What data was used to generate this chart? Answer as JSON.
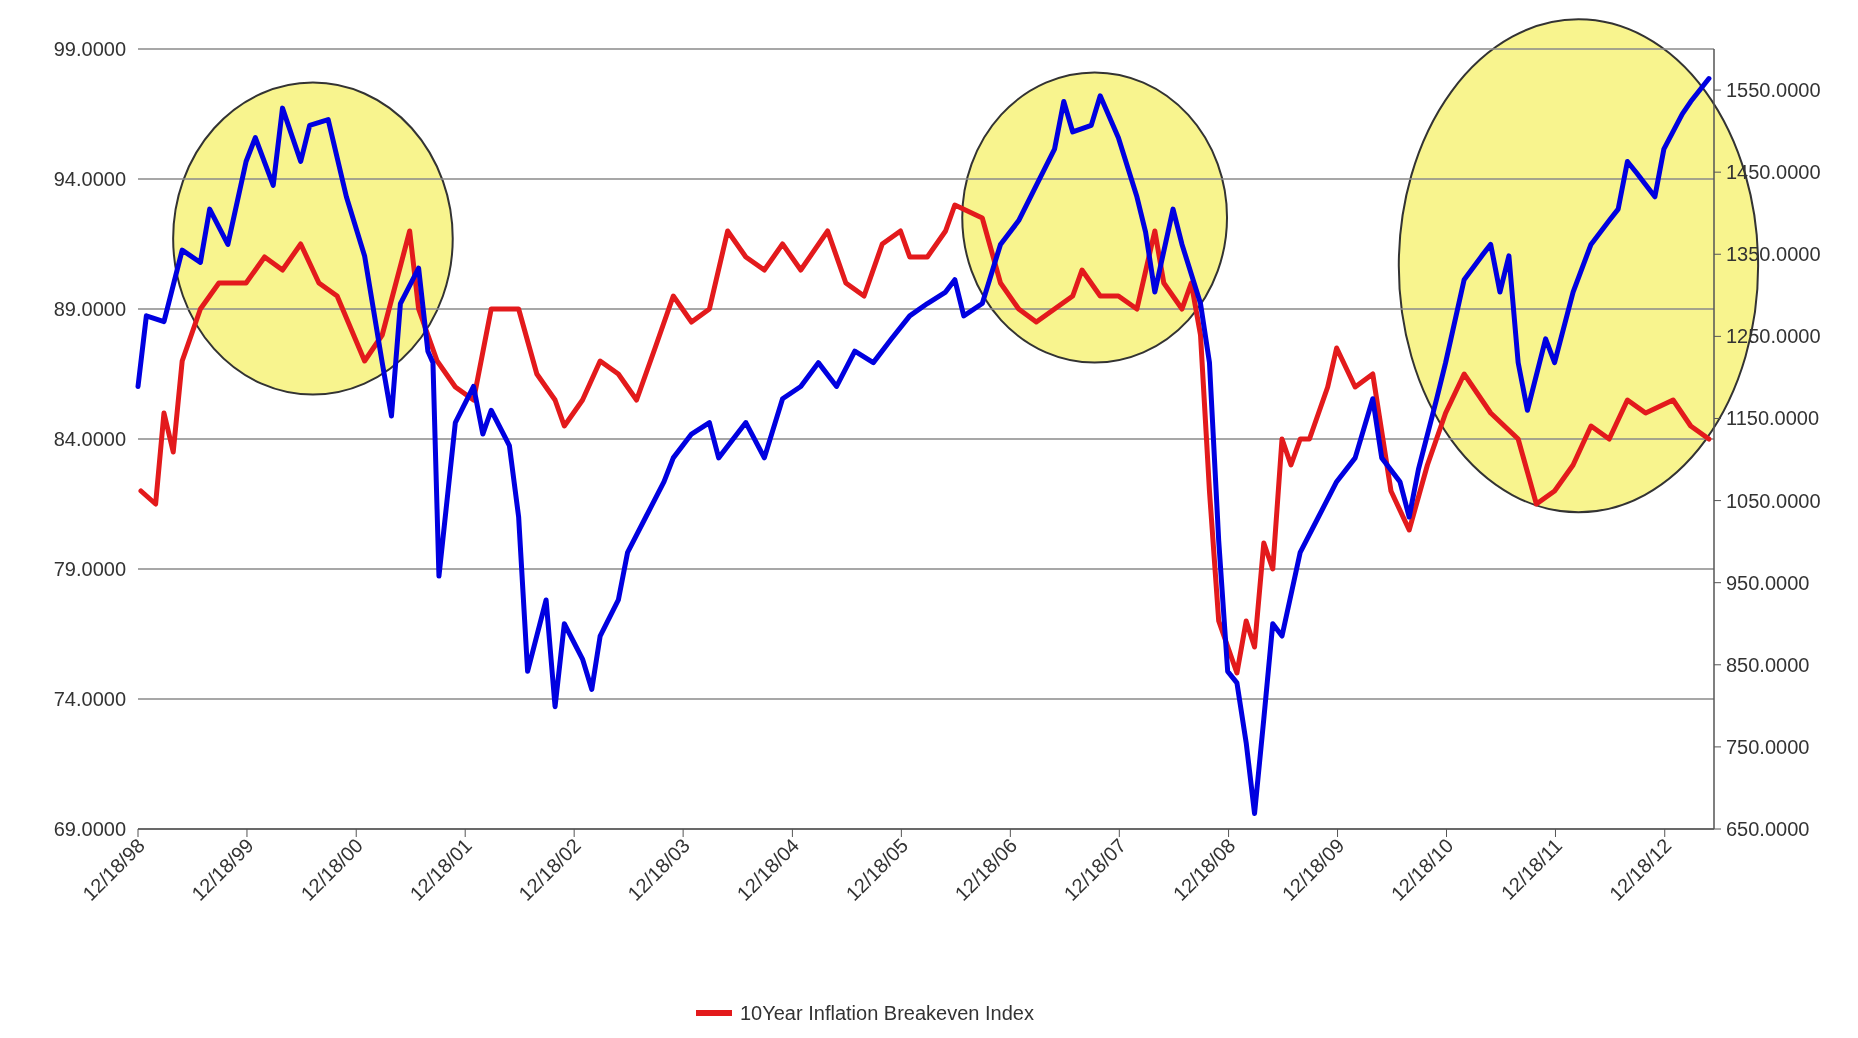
{
  "chart_data": {
    "type": "line",
    "xlim": [
      "1998-12-18",
      "2013-06-01"
    ],
    "xticks": [
      {
        "value": "1998-12-18",
        "label": "12/18/98"
      },
      {
        "value": "1999-12-18",
        "label": "12/18/99"
      },
      {
        "value": "2000-12-18",
        "label": "12/18/00"
      },
      {
        "value": "2001-12-18",
        "label": "12/18/01"
      },
      {
        "value": "2002-12-18",
        "label": "12/18/02"
      },
      {
        "value": "2003-12-18",
        "label": "12/18/03"
      },
      {
        "value": "2004-12-18",
        "label": "12/18/04"
      },
      {
        "value": "2005-12-18",
        "label": "12/18/05"
      },
      {
        "value": "2006-12-18",
        "label": "12/18/06"
      },
      {
        "value": "2007-12-18",
        "label": "12/18/07"
      },
      {
        "value": "2008-12-18",
        "label": "12/18/08"
      },
      {
        "value": "2009-12-18",
        "label": "12/18/09"
      },
      {
        "value": "2010-12-18",
        "label": "12/18/10"
      },
      {
        "value": "2011-12-18",
        "label": "12/18/11"
      },
      {
        "value": "2012-12-18",
        "label": "12/18/12"
      }
    ],
    "ylim": [
      69,
      99
    ],
    "yticks": [
      {
        "value": 69,
        "label": "69.0000"
      },
      {
        "value": 74,
        "label": "74.0000"
      },
      {
        "value": 79,
        "label": "79.0000"
      },
      {
        "value": 84,
        "label": "84.0000"
      },
      {
        "value": 89,
        "label": "89.0000"
      },
      {
        "value": 94,
        "label": "94.0000"
      },
      {
        "value": 99,
        "label": "99.0000"
      }
    ],
    "y2lim": [
      650,
      1600
    ],
    "y2ticks": [
      {
        "value": 650,
        "label": "650.0000"
      },
      {
        "value": 750,
        "label": "750.0000"
      },
      {
        "value": 850,
        "label": "850.0000"
      },
      {
        "value": 950,
        "label": "950.0000"
      },
      {
        "value": 1050,
        "label": "1050.0000"
      },
      {
        "value": 1150,
        "label": "1150.0000"
      },
      {
        "value": 1250,
        "label": "1250.0000"
      },
      {
        "value": 1350,
        "label": "1350.0000"
      },
      {
        "value": 1450,
        "label": "1450.0000"
      },
      {
        "value": 1550,
        "label": "1550.0000"
      }
    ],
    "grid": "y",
    "legend": "bottom",
    "series": [
      {
        "name": "10Year Inflation Breakeven Index",
        "color": "#e31a1c",
        "x": [
          "1998-12-28",
          "1999-02",
          "1999-03",
          "1999-04",
          "1999-05",
          "1999-07",
          "1999-09",
          "1999-12",
          "2000-02",
          "2000-04",
          "2000-06",
          "2000-08",
          "2000-10",
          "2001-01",
          "2001-03",
          "2001-06",
          "2001-07",
          "2001-09",
          "2001-11",
          "2002-01",
          "2002-03",
          "2002-06",
          "2002-08",
          "2002-10",
          "2002-11",
          "2003-01",
          "2003-03",
          "2003-05",
          "2003-07",
          "2003-09",
          "2003-11",
          "2004-01",
          "2004-03",
          "2004-05",
          "2004-07",
          "2004-09",
          "2004-11",
          "2005-01",
          "2005-04",
          "2005-06",
          "2005-08",
          "2005-10",
          "2005-12",
          "2006-01",
          "2006-03",
          "2006-05",
          "2006-06",
          "2006-09",
          "2006-11",
          "2007-01",
          "2007-03",
          "2007-05",
          "2007-07",
          "2007-08",
          "2007-10",
          "2007-12",
          "2008-02",
          "2008-04",
          "2008-05",
          "2008-07",
          "2008-08",
          "2008-09",
          "2008-10",
          "2008-11",
          "2009-01",
          "2009-02",
          "2009-03",
          "2009-04",
          "2009-05",
          "2009-06",
          "2009-07",
          "2009-08",
          "2009-09",
          "2009-11",
          "2009-12",
          "2010-02",
          "2010-04",
          "2010-06",
          "2010-08",
          "2010-10",
          "2010-12",
          "2011-02",
          "2011-05",
          "2011-08",
          "2011-10",
          "2011-12",
          "2012-02",
          "2012-04",
          "2012-06",
          "2012-08",
          "2012-10",
          "2013-01",
          "2013-03",
          "2013-05"
        ],
        "values": [
          82,
          81.5,
          85,
          83.5,
          87,
          89,
          90,
          90,
          91,
          90.5,
          91.5,
          90,
          89.5,
          87,
          88,
          92,
          89,
          87,
          86,
          85.5,
          89,
          89,
          86.5,
          85.5,
          84.5,
          85.5,
          87,
          86.5,
          85.5,
          87.5,
          89.5,
          88.5,
          89,
          92,
          91,
          90.5,
          91.5,
          90.5,
          92,
          90,
          89.5,
          91.5,
          92,
          91,
          91,
          92,
          93,
          92.5,
          90,
          89,
          88.5,
          89,
          89.5,
          90.5,
          89.5,
          89.5,
          89,
          92,
          90,
          89,
          90,
          88,
          82,
          77,
          75,
          77,
          76,
          80,
          79,
          84,
          83,
          84,
          84,
          86,
          87.5,
          86,
          86.5,
          82,
          80.5,
          83,
          85,
          86.5,
          85,
          84,
          81.5,
          82,
          83,
          84.5,
          84,
          85.5,
          85,
          85.5,
          84.5,
          84
        ]
      },
      {
        "color": "#0000e0",
        "axis": "y2",
        "x": [
          "1998-12-18",
          "1999-01",
          "1999-03",
          "1999-05",
          "1999-07",
          "1999-08",
          "1999-10",
          "1999-12",
          "2000-01",
          "2000-03",
          "2000-04",
          "2000-06",
          "2000-07",
          "2000-09",
          "2000-11",
          "2001-01",
          "2001-03",
          "2001-04",
          "2001-05",
          "2001-07",
          "2001-08",
          "2001-09-01",
          "2001-09-21",
          "2001-11",
          "2002-01",
          "2002-02",
          "2002-03",
          "2002-05",
          "2002-06",
          "2002-07",
          "2002-09",
          "2002-10",
          "2002-11",
          "2003-01",
          "2003-02",
          "2003-03",
          "2003-05",
          "2003-06",
          "2003-08",
          "2003-10",
          "2003-11",
          "2004-01",
          "2004-03",
          "2004-04",
          "2004-07",
          "2004-09",
          "2004-11",
          "2005-01",
          "2005-03",
          "2005-05",
          "2005-07",
          "2005-09",
          "2005-11",
          "2006-01",
          "2006-03",
          "2006-05",
          "2006-06",
          "2006-07",
          "2006-09",
          "2006-11",
          "2007-01",
          "2007-03",
          "2007-05",
          "2007-06",
          "2007-07",
          "2007-09",
          "2007-10",
          "2007-12",
          "2008-02",
          "2008-03",
          "2008-04",
          "2008-06",
          "2008-07",
          "2008-09",
          "2008-10",
          "2008-11",
          "2008-12",
          "2009-01",
          "2009-02",
          "2009-03",
          "2009-04",
          "2009-05",
          "2009-06",
          "2009-08",
          "2009-10",
          "2009-12",
          "2010-02",
          "2010-04",
          "2010-05",
          "2010-07",
          "2010-08",
          "2010-09",
          "2010-11",
          "2010-12",
          "2011-02",
          "2011-04",
          "2011-05",
          "2011-06",
          "2011-07",
          "2011-08",
          "2011-09",
          "2011-11",
          "2011-12",
          "2012-02",
          "2012-04",
          "2012-06",
          "2012-07",
          "2012-08",
          "2012-09",
          "2012-11",
          "2012-12",
          "2013-02",
          "2013-03",
          "2013-05"
        ],
        "values": [
          1189,
          1275,
          1268,
          1355,
          1340,
          1405,
          1362,
          1463,
          1492,
          1434,
          1528,
          1463,
          1507,
          1514,
          1420,
          1348,
          1218,
          1153,
          1290,
          1333,
          1232,
          1218,
          958,
          1145,
          1189,
          1131,
          1160,
          1117,
          1030,
          842,
          929,
          799,
          900,
          857,
          820,
          885,
          929,
          987,
          1030,
          1073,
          1102,
          1131,
          1145,
          1102,
          1145,
          1102,
          1174,
          1189,
          1218,
          1189,
          1232,
          1218,
          1247,
          1275,
          1290,
          1304,
          1319,
          1275,
          1290,
          1362,
          1391,
          1434,
          1478,
          1536,
          1499,
          1507,
          1543,
          1492,
          1420,
          1377,
          1304,
          1405,
          1362,
          1290,
          1218,
          1001,
          842,
          828,
          755,
          669,
          784,
          900,
          885,
          987,
          1030,
          1073,
          1102,
          1174,
          1102,
          1073,
          1030,
          1088,
          1174,
          1218,
          1319,
          1348,
          1362,
          1304,
          1348,
          1218,
          1160,
          1247,
          1218,
          1304,
          1362,
          1391,
          1405,
          1463,
          1449,
          1420,
          1478,
          1521,
          1536,
          1564
        ]
      }
    ]
  }
}
